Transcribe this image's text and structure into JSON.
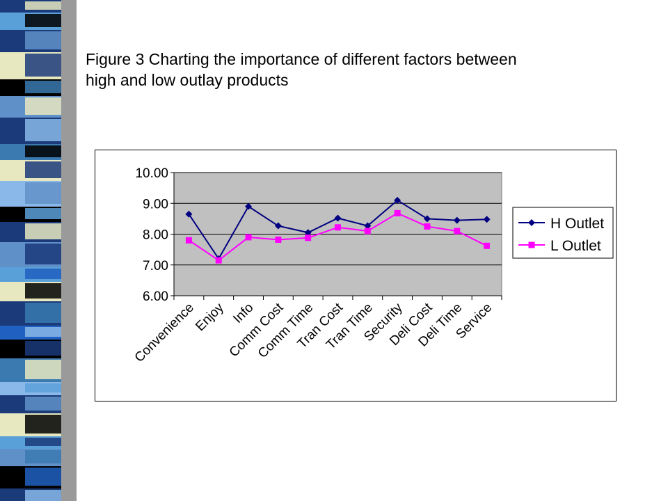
{
  "slide": {
    "caption_line1": "Figure 3  Charting the importance of different factors between",
    "caption_line2": "high and low outlay products"
  },
  "theme": {
    "plot_bg": "#c0c0c0",
    "h_color": "#000080",
    "l_color": "#ff00ff",
    "strip_colors": [
      "#1a3a7a",
      "#5aa0d8",
      "#000000",
      "#e8e8c0",
      "#3a7ab0",
      "#2060c0",
      "#6090c8",
      "#8ab8e8"
    ]
  },
  "chart_data": {
    "type": "line",
    "title": "",
    "xlabel": "",
    "ylabel": "",
    "ylim": [
      6.0,
      10.0
    ],
    "yticks": [
      "6.00",
      "7.00",
      "8.00",
      "9.00",
      "10.00"
    ],
    "grid": true,
    "legend_position": "right",
    "categories": [
      "Convenience",
      "Enjoy",
      "Info",
      "Comm Cost",
      "Comm Time",
      "Tran Cost",
      "Tran Time",
      "Security",
      "Deli Cost",
      "Deli Time",
      "Service"
    ],
    "series": [
      {
        "name": "H Outlet",
        "marker": "diamond",
        "values": [
          8.65,
          7.2,
          8.9,
          8.27,
          8.05,
          8.52,
          8.27,
          9.1,
          8.5,
          8.45,
          8.48
        ]
      },
      {
        "name": "L Outlet",
        "marker": "square",
        "values": [
          7.8,
          7.15,
          7.9,
          7.82,
          7.88,
          8.22,
          8.1,
          8.68,
          8.25,
          8.1,
          7.62
        ]
      }
    ]
  }
}
